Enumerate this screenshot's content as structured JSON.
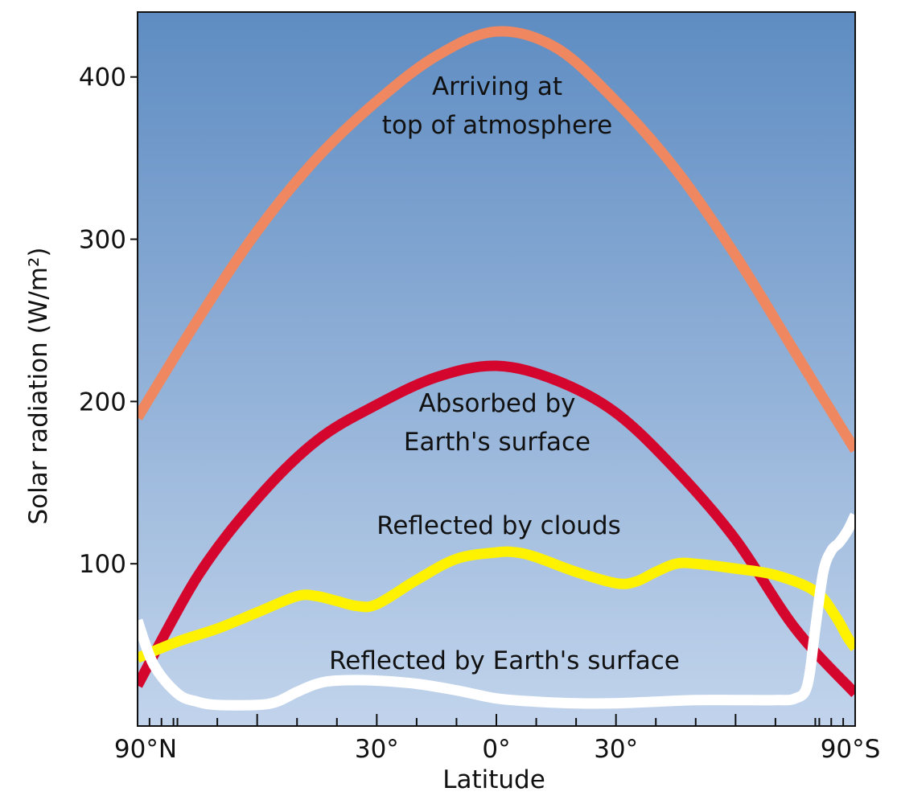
{
  "chart_data": {
    "type": "line",
    "xlabel": "Latitude",
    "ylabel": "Solar radiation (W/m²)",
    "ylim": [
      0,
      440
    ],
    "xlim": [
      -90,
      90
    ],
    "x_ticks": [
      {
        "value": -90,
        "label": "90°N"
      },
      {
        "value": -30,
        "label": "30°"
      },
      {
        "value": 0,
        "label": "0°"
      },
      {
        "value": 30,
        "label": "30°"
      },
      {
        "value": 90,
        "label": "90°S"
      }
    ],
    "y_ticks": [
      100,
      200,
      300,
      400
    ],
    "grid": false,
    "background_gradient": [
      "#5e8cc2",
      "#c2d4ec"
    ],
    "series": [
      {
        "label": "Arriving at\ntop of atmosphere",
        "color": "#ef8860",
        "x": [
          -90,
          -75,
          -60,
          -45,
          -30,
          -15,
          0,
          15,
          30,
          45,
          60,
          75,
          90
        ],
        "y": [
          190,
          250,
          305,
          350,
          385,
          413,
          428,
          418,
          385,
          343,
          290,
          230,
          170
        ]
      },
      {
        "label": "Absorbed by\nEarth's surface",
        "color": "#d5062d",
        "x": [
          -90,
          -75,
          -60,
          -45,
          -30,
          -15,
          0,
          15,
          30,
          45,
          60,
          75,
          90
        ],
        "y": [
          25,
          92,
          140,
          176,
          198,
          215,
          222,
          213,
          193,
          158,
          115,
          60,
          20
        ]
      },
      {
        "label": "Reflected by clouds",
        "color": "#fff200",
        "x": [
          -90,
          -80,
          -70,
          -60,
          -50,
          -45,
          -40,
          -35,
          -30,
          -20,
          -10,
          0,
          5,
          10,
          20,
          30,
          35,
          40,
          45,
          50,
          60,
          70,
          80,
          85,
          88,
          90
        ],
        "y": [
          42,
          52,
          60,
          70,
          80,
          80,
          77,
          74,
          75,
          90,
          103,
          107,
          107,
          104,
          95,
          88,
          89,
          95,
          100,
          100,
          97,
          93,
          83,
          68,
          55,
          48
        ]
      },
      {
        "label": "Reflected by Earth's surface",
        "color": "#ffffff",
        "x": [
          -90,
          -86,
          -80,
          -75,
          -70,
          -60,
          -55,
          -50,
          -45,
          -40,
          -30,
          -20,
          -10,
          0,
          10,
          20,
          30,
          40,
          50,
          60,
          70,
          75,
          78,
          80,
          82,
          84,
          86,
          88,
          90
        ],
        "y": [
          65,
          38,
          20,
          15,
          13,
          13,
          15,
          21,
          26,
          28,
          28,
          26,
          22,
          17,
          15,
          14,
          14,
          15,
          16,
          16,
          16,
          17,
          25,
          60,
          95,
          108,
          113,
          120,
          130
        ]
      }
    ]
  }
}
